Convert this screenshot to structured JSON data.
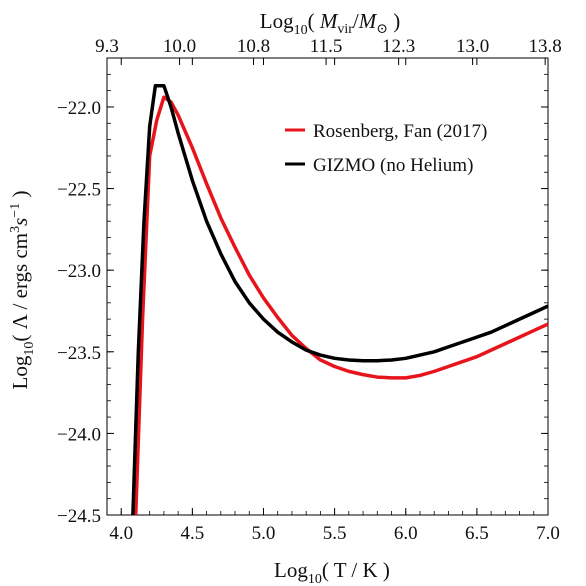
{
  "chart_data": {
    "type": "line",
    "xlabel": "Log10( T / K )",
    "ylabel": "Log10( Λ / ergs cm3 s−1 )",
    "top_xlabel": "Log10( Mvir/M⊙ )",
    "xlim": [
      3.9,
      7.0
    ],
    "ylim": [
      -24.5,
      -21.7
    ],
    "x_ticks": [
      4.0,
      4.5,
      5.0,
      5.5,
      6.0,
      6.5,
      7.0
    ],
    "x_tick_labels": [
      "4.0",
      "4.5",
      "5.0",
      "5.5",
      "6.0",
      "6.5",
      "7.0"
    ],
    "y_ticks": [
      -22.0,
      -22.5,
      -23.0,
      -23.5,
      -24.0,
      -24.5
    ],
    "y_tick_labels": [
      "−22.0",
      "−22.5",
      "−23.0",
      "−23.5",
      "−24.0",
      "−24.5"
    ],
    "top_ticks_at_x": [
      4.0,
      4.17,
      4.5,
      5.0,
      5.5,
      6.0,
      6.5,
      7.0
    ],
    "top_tick_labels": [
      "9.3",
      "10.0",
      "10.8",
      "11.5",
      "12.3",
      "13.0",
      "13.8"
    ],
    "top_tick_positions": [
      3.9,
      4.41,
      4.93,
      5.44,
      5.95,
      6.47,
      6.98
    ],
    "legend_position": "top-right",
    "grid": false,
    "series": [
      {
        "name": "Rosenberg, Fan (2017)",
        "color": "#e8141b",
        "x": [
          4.1,
          4.15,
          4.2,
          4.25,
          4.3,
          4.35,
          4.4,
          4.5,
          4.6,
          4.7,
          4.8,
          4.9,
          5.0,
          5.1,
          5.2,
          5.3,
          5.4,
          5.5,
          5.6,
          5.7,
          5.8,
          5.9,
          6.0,
          6.1,
          6.2,
          6.3,
          6.4,
          6.5,
          6.6,
          6.7,
          6.8,
          6.9,
          7.0
        ],
        "y": [
          -24.55,
          -23.3,
          -22.3,
          -22.08,
          -21.94,
          -21.97,
          -22.05,
          -22.25,
          -22.47,
          -22.68,
          -22.86,
          -23.03,
          -23.17,
          -23.29,
          -23.4,
          -23.48,
          -23.55,
          -23.59,
          -23.62,
          -23.64,
          -23.655,
          -23.66,
          -23.66,
          -23.645,
          -23.62,
          -23.59,
          -23.56,
          -23.53,
          -23.49,
          -23.45,
          -23.41,
          -23.37,
          -23.33
        ]
      },
      {
        "name": "GIZMO (no Helium)",
        "color": "#000000",
        "x": [
          4.08,
          4.12,
          4.16,
          4.2,
          4.24,
          4.3,
          4.35,
          4.4,
          4.5,
          4.6,
          4.7,
          4.8,
          4.9,
          5.0,
          5.1,
          5.2,
          5.3,
          5.4,
          5.5,
          5.6,
          5.7,
          5.8,
          5.9,
          6.0,
          6.1,
          6.2,
          6.3,
          6.4,
          6.5,
          6.6,
          6.7,
          6.8,
          6.9,
          7.0
        ],
        "y": [
          -24.55,
          -23.5,
          -22.7,
          -22.12,
          -21.87,
          -21.87,
          -22.0,
          -22.16,
          -22.45,
          -22.7,
          -22.9,
          -23.07,
          -23.2,
          -23.3,
          -23.38,
          -23.44,
          -23.49,
          -23.52,
          -23.54,
          -23.55,
          -23.555,
          -23.555,
          -23.55,
          -23.54,
          -23.52,
          -23.5,
          -23.47,
          -23.44,
          -23.41,
          -23.38,
          -23.34,
          -23.3,
          -23.26,
          -23.22
        ]
      }
    ]
  }
}
